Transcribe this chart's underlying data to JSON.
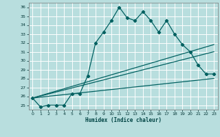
{
  "xlabel": "Humidex (Indice chaleur)",
  "background_color": "#b8dede",
  "grid_color": "#d8eeee",
  "line_color": "#006060",
  "xlim": [
    -0.5,
    23.5
  ],
  "ylim": [
    24.5,
    36.5
  ],
  "yticks": [
    25,
    26,
    27,
    28,
    29,
    30,
    31,
    32,
    33,
    34,
    35,
    36
  ],
  "xticks": [
    0,
    1,
    2,
    3,
    4,
    5,
    6,
    7,
    8,
    9,
    10,
    11,
    12,
    13,
    14,
    15,
    16,
    17,
    18,
    19,
    20,
    21,
    22,
    23
  ],
  "series1_x": [
    0,
    1,
    2,
    3,
    4,
    5,
    6,
    7,
    8,
    9,
    10,
    11,
    12,
    13,
    14,
    15,
    16,
    17,
    18,
    19,
    20,
    21,
    22,
    23
  ],
  "series1_y": [
    25.8,
    24.8,
    25.0,
    25.0,
    25.0,
    26.3,
    26.3,
    28.3,
    32.0,
    33.2,
    34.5,
    36.0,
    34.8,
    34.5,
    35.5,
    34.5,
    33.2,
    34.5,
    33.0,
    31.8,
    31.0,
    29.5,
    28.5,
    28.5
  ],
  "series2_x": [
    0,
    23
  ],
  "series2_y": [
    25.8,
    31.8
  ],
  "series3_x": [
    0,
    23
  ],
  "series3_y": [
    25.8,
    31.0
  ],
  "series4_x": [
    0,
    23
  ],
  "series4_y": [
    25.8,
    28.0
  ]
}
